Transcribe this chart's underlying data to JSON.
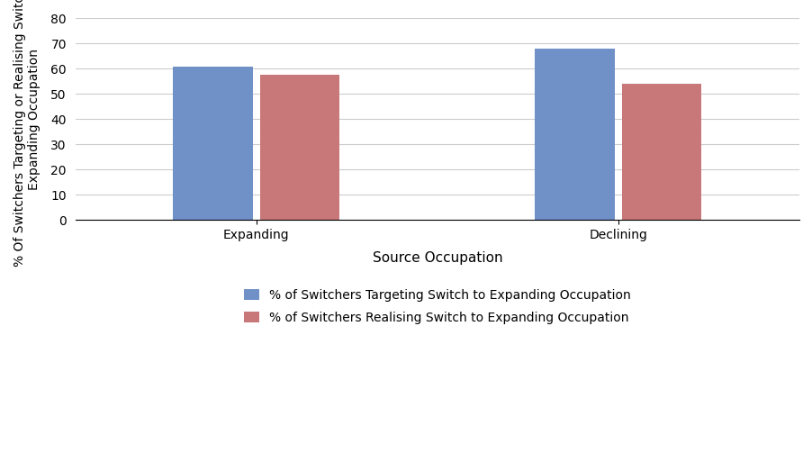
{
  "categories": [
    "Expanding",
    "Declining"
  ],
  "targeting_values": [
    61,
    68
  ],
  "realising_values": [
    57.5,
    54
  ],
  "bar_color_targeting": "#7090C8",
  "bar_color_realising": "#C87878",
  "xlabel": "Source Occupation",
  "ylabel": "% Of Switchers Targeting or Realising Switch to\nExpanding Occupation",
  "ylim": [
    0,
    80
  ],
  "yticks": [
    0,
    10,
    20,
    30,
    40,
    50,
    60,
    70,
    80
  ],
  "legend_targeting": "% of Switchers Targeting Switch to Expanding Occupation",
  "legend_realising": "% of Switchers Realising Switch to Expanding Occupation",
  "bar_width": 0.22,
  "group_positions": [
    0.5,
    1.5
  ],
  "background_color": "#ffffff",
  "grid_color": "#cccccc",
  "xlabel_fontsize": 11,
  "ylabel_fontsize": 10,
  "tick_fontsize": 10,
  "legend_fontsize": 10
}
